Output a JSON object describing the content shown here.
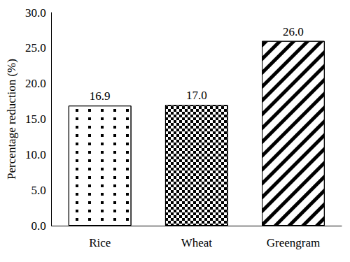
{
  "chart_data": {
    "type": "bar",
    "y_label": "Percentage reduction (%)",
    "categories": [
      "Rice",
      "Wheat",
      "Greengram"
    ],
    "values": [
      16.9,
      17.0,
      26.0
    ],
    "value_labels": [
      "16.9",
      "17.0",
      "26.0"
    ],
    "color": "#ffffff",
    "ylim": [
      0,
      30
    ],
    "yticks": [
      {
        "value": 0,
        "label": "0.0"
      },
      {
        "value": 5,
        "label": "5.0"
      },
      {
        "value": 10,
        "label": "10.0"
      },
      {
        "value": 15,
        "label": "15.0"
      },
      {
        "value": 20,
        "label": "20.0"
      },
      {
        "value": 25,
        "label": "25.0"
      },
      {
        "value": 30,
        "label": "30.0"
      }
    ],
    "grid": false,
    "data_labels": true
  }
}
